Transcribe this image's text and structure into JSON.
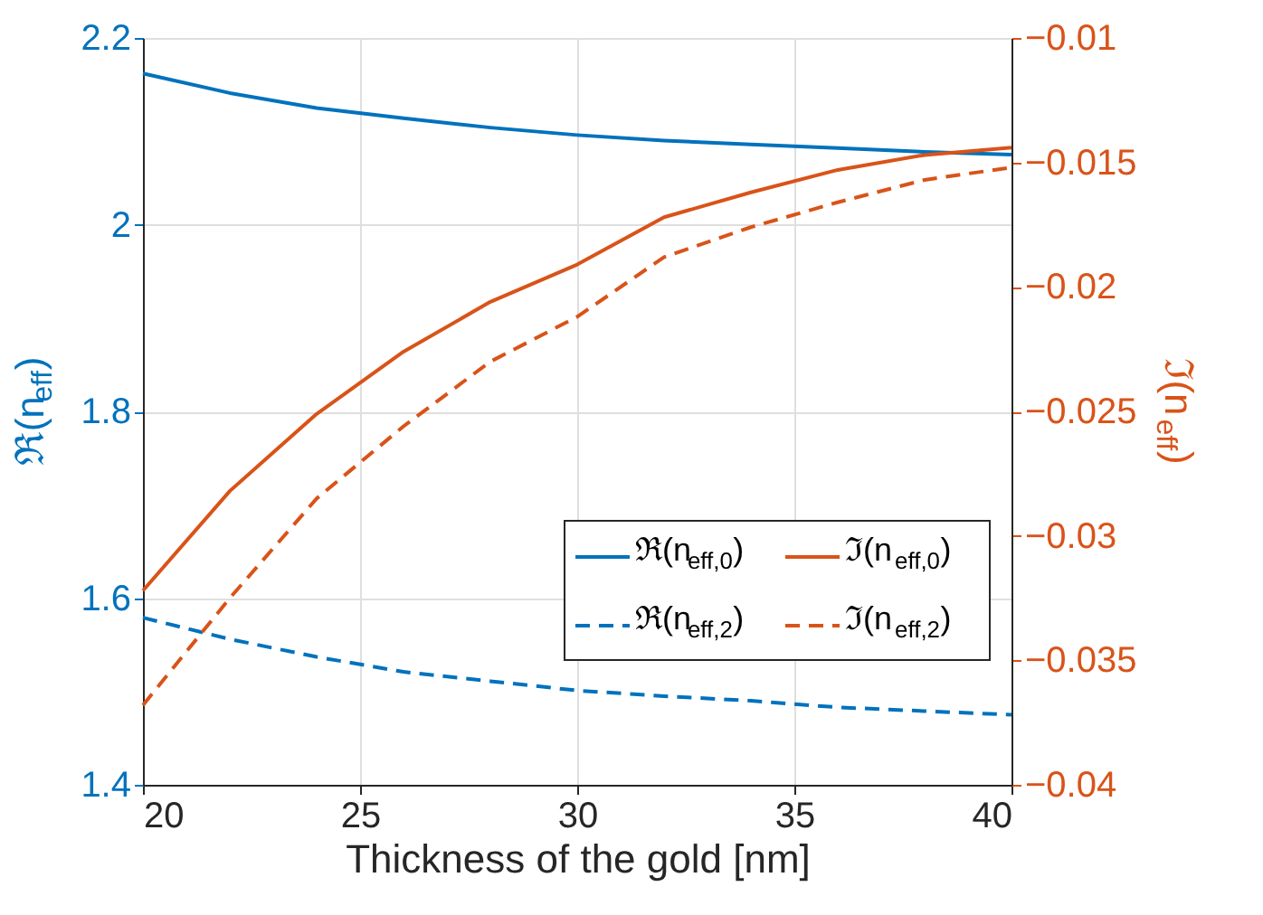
{
  "chart_data": {
    "type": "line",
    "xlabel": "Thickness of the gold [nm]",
    "ylabel": "ℜ(n$_{eff}$)",
    "y2label": "ℑ(n$_{eff}$)",
    "x": [
      20,
      22,
      24,
      26,
      28,
      30,
      32,
      34,
      36,
      38,
      40
    ],
    "series": [
      {
        "name": "ℜ(n$_{eff,0}$)",
        "color": "#0072bd",
        "line_style": "solid",
        "values": [
          2.162,
          2.141,
          2.125,
          2.114,
          2.104,
          2.096,
          2.09,
          2.086,
          2.082,
          2.078,
          2.075
        ]
      },
      {
        "name": "ℑ(n$_{eff,0}$)",
        "color": "#d95319",
        "line_style": "solid",
        "axis": "y2",
        "values": [
          -0.0322,
          -0.0282,
          -0.0251,
          -0.0226,
          -0.0206,
          -0.0191,
          -0.0172,
          -0.0162,
          -0.0153,
          -0.0147,
          -0.0144
        ]
      },
      {
        "name": "ℜ(n$_{eff,2}$)",
        "color": "#0072bd",
        "line_style": "dashed",
        "values": [
          1.579,
          1.556,
          1.537,
          1.521,
          1.511,
          1.501,
          1.495,
          1.49,
          1.483,
          1.479,
          1.475
        ]
      },
      {
        "name": "ℑ(n$_{eff,2}$)",
        "color": "#d95319",
        "line_style": "dashed",
        "axis": "y2",
        "values": [
          -0.0368,
          -0.0325,
          -0.0285,
          -0.0256,
          -0.023,
          -0.0212,
          -0.0188,
          -0.0176,
          -0.0166,
          -0.0157,
          -0.0152
        ]
      }
    ],
    "xlim": [
      20,
      40
    ],
    "xticks": [
      20,
      25,
      30,
      35,
      40
    ],
    "ylim": [
      1.4,
      2.2
    ],
    "yticks": [
      1.4,
      1.6,
      1.8,
      2,
      2.2
    ],
    "y2lim": [
      -0.04,
      -0.01
    ],
    "y2ticks": [
      -0.04,
      -0.035,
      -0.03,
      -0.025,
      -0.02,
      -0.015,
      -0.01
    ],
    "grid": true,
    "legend": "bottom right",
    "marker": "none"
  }
}
